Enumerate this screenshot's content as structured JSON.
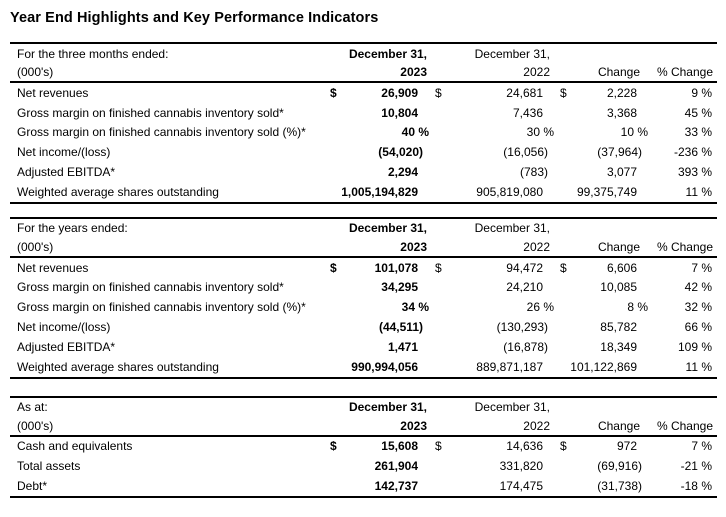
{
  "title": "Year End Highlights and Key Performance Indicators",
  "colors": {
    "background": "#ffffff",
    "text": "#000000",
    "rule": "#000000"
  },
  "sections": [
    {
      "period": "For the three months ended:",
      "units": "(000's)",
      "date1": "December 31,",
      "date2": "December 31,",
      "year1": "2023",
      "year2": "2022",
      "change": "Change",
      "pct": "% Change",
      "rows": [
        {
          "label": "Net revenues",
          "d1": "$",
          "v1": "26,909",
          "d2": "$",
          "v2": "24,681",
          "d3": "$",
          "v3": "2,228",
          "v4": "9 %"
        },
        {
          "label": "Gross margin on finished cannabis inventory sold*",
          "d1": "",
          "v1": "10,804",
          "d2": "",
          "v2": "7,436",
          "d3": "",
          "v3": "3,368",
          "v4": "45 %"
        },
        {
          "label": "Gross margin on finished cannabis inventory sold (%)*",
          "d1": "",
          "v1": "40 %",
          "d2": "",
          "v2": "30 %",
          "d3": "",
          "v3": "10 %",
          "v4": "33 %"
        },
        {
          "label": "Net income/(loss)",
          "d1": "",
          "v1": "(54,020)",
          "d2": "",
          "v2": "(16,056)",
          "d3": "",
          "v3": "(37,964)",
          "v4": "-236 %"
        },
        {
          "label": "Adjusted EBITDA*",
          "d1": "",
          "v1": "2,294",
          "d2": "",
          "v2": "(783)",
          "d3": "",
          "v3": "3,077",
          "v4": "393 %"
        },
        {
          "label": "Weighted average shares outstanding",
          "d1": "",
          "v1": "1,005,194,829",
          "d2": "",
          "v2": "905,819,080",
          "d3": "",
          "v3": "99,375,749",
          "v4": "11 %"
        }
      ]
    },
    {
      "period": "For the years ended:",
      "units": "(000's)",
      "date1": "December 31,",
      "date2": "December 31,",
      "year1": "2023",
      "year2": "2022",
      "change": "Change",
      "pct": "% Change",
      "rows": [
        {
          "label": "Net revenues",
          "d1": "$",
          "v1": "101,078",
          "d2": "$",
          "v2": "94,472",
          "d3": "$",
          "v3": "6,606",
          "v4": "7 %"
        },
        {
          "label": "Gross margin on finished cannabis inventory sold*",
          "d1": "",
          "v1": "34,295",
          "d2": "",
          "v2": "24,210",
          "d3": "",
          "v3": "10,085",
          "v4": "42 %"
        },
        {
          "label": "Gross margin on finished cannabis inventory sold (%)*",
          "d1": "",
          "v1": "34 %",
          "d2": "",
          "v2": "26 %",
          "d3": "",
          "v3": "8 %",
          "v4": "32 %"
        },
        {
          "label": "Net income/(loss)",
          "d1": "",
          "v1": "(44,511)",
          "d2": "",
          "v2": "(130,293)",
          "d3": "",
          "v3": "85,782",
          "v4": "66 %"
        },
        {
          "label": "Adjusted EBITDA*",
          "d1": "",
          "v1": "1,471",
          "d2": "",
          "v2": "(16,878)",
          "d3": "",
          "v3": "18,349",
          "v4": "109 %"
        },
        {
          "label": "Weighted average shares outstanding",
          "d1": "",
          "v1": "990,994,056",
          "d2": "",
          "v2": "889,871,187",
          "d3": "",
          "v3": "101,122,869",
          "v4": "11 %"
        }
      ]
    },
    {
      "period": "As at:",
      "units": "(000's)",
      "date1": "December 31,",
      "date2": "December 31,",
      "year1": "2023",
      "year2": "2022",
      "change": "Change",
      "pct": "% Change",
      "rows": [
        {
          "label": "Cash and equivalents",
          "d1": "$",
          "v1": "15,608",
          "d2": "$",
          "v2": "14,636",
          "d3": "$",
          "v3": "972",
          "v4": "7 %"
        },
        {
          "label": "Total assets",
          "d1": "",
          "v1": "261,904",
          "d2": "",
          "v2": "331,820",
          "d3": "",
          "v3": "(69,916)",
          "v4": "-21 %"
        },
        {
          "label": "Debt*",
          "d1": "",
          "v1": "142,737",
          "d2": "",
          "v2": "174,475",
          "d3": "",
          "v3": "(31,738)",
          "v4": "-18 %"
        }
      ]
    }
  ]
}
